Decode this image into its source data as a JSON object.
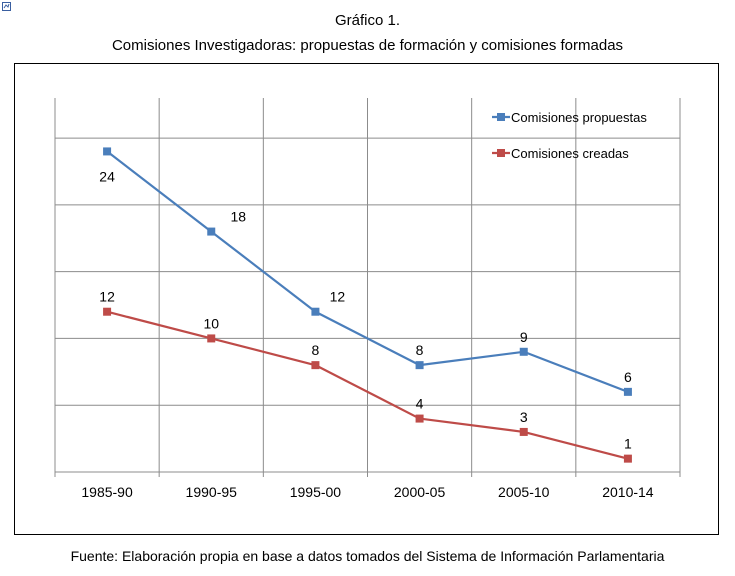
{
  "header": {
    "title_line1": "Gráfico 1.",
    "title_line2": "Comisiones Investigadoras: propuestas de formación y comisiones formadas"
  },
  "footer": {
    "source": "Fuente: Elaboración propia en base a datos tomados del Sistema de Información Parlamentaria"
  },
  "chart_data": {
    "type": "line",
    "title": "Comisiones Investigadoras: propuestas de formación y comisiones formadas",
    "categories": [
      "1985-90",
      "1990-95",
      "1995-00",
      "2000-05",
      "2005-10",
      "2010-14"
    ],
    "ylim": [
      0,
      28
    ],
    "grid": true,
    "legend_position": "top-right",
    "series": [
      {
        "name": "Comisiones propuestas",
        "color": "#4a7ebb",
        "values": [
          24,
          18,
          12,
          8,
          9,
          6
        ]
      },
      {
        "name": "Comisiones creadas",
        "color": "#be4b48",
        "values": [
          12,
          10,
          8,
          4,
          3,
          1
        ]
      }
    ]
  }
}
